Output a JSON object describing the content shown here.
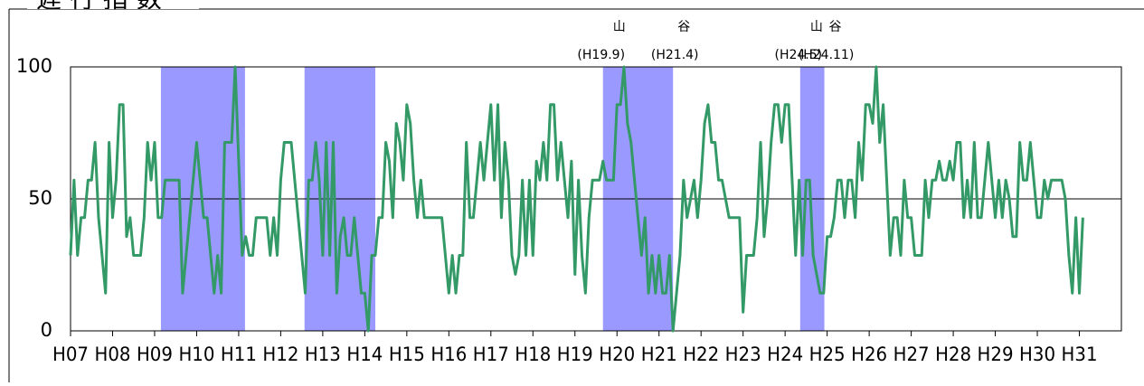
{
  "chart_data": {
    "type": "line",
    "title": "遅 行 指 数",
    "x": [
      0,
      1,
      2,
      3,
      4,
      5,
      6,
      7,
      8,
      9,
      10,
      11,
      12,
      13,
      14,
      15,
      16,
      17,
      18,
      19,
      20,
      21,
      22,
      23,
      24,
      25,
      26,
      27,
      28,
      29,
      30,
      31,
      32,
      33,
      34,
      35,
      36,
      37,
      38,
      39,
      40,
      41,
      42,
      43,
      44,
      45,
      46,
      47,
      48,
      49,
      50,
      51,
      52,
      53,
      54,
      55,
      56,
      57,
      58,
      59,
      60,
      61,
      62,
      63,
      64,
      65,
      66,
      67,
      68,
      69,
      70,
      71,
      72,
      73,
      74,
      75,
      76,
      77,
      78,
      79,
      80,
      81,
      82,
      83,
      84,
      85,
      86,
      87,
      88,
      89,
      90,
      91,
      92,
      93,
      94,
      95,
      96,
      97,
      98,
      99,
      100,
      101,
      102,
      103,
      104,
      105,
      106,
      107,
      108,
      109,
      110,
      111,
      112,
      113,
      114,
      115,
      116,
      117,
      118,
      119,
      120,
      121,
      122,
      123,
      124,
      125,
      126,
      127,
      128,
      129,
      130,
      131,
      132,
      133,
      134,
      135,
      136,
      137,
      138,
      139,
      140,
      141,
      142,
      143,
      144,
      145,
      146,
      147,
      148,
      149,
      150,
      151,
      152,
      153,
      154,
      155,
      156,
      157,
      158,
      159,
      160,
      161,
      162,
      163,
      164,
      165,
      166,
      167,
      168,
      169,
      170,
      171,
      172,
      173,
      174,
      175,
      176,
      177,
      178,
      179,
      180,
      181,
      182,
      183,
      184,
      185,
      186,
      187,
      188,
      189,
      190,
      191,
      192,
      193,
      194,
      195,
      196,
      197,
      198,
      199,
      200,
      201,
      202,
      203,
      204,
      205,
      206,
      207,
      208,
      209,
      210,
      211,
      212,
      213,
      214,
      215,
      216,
      217,
      218,
      219,
      220,
      221,
      222,
      223,
      224,
      225,
      226,
      227,
      228,
      229,
      230,
      231,
      232,
      233,
      234,
      235,
      236,
      237,
      238,
      239,
      240,
      241,
      242,
      243,
      244,
      245,
      246,
      247,
      248,
      249,
      250,
      251,
      252,
      253,
      254,
      255,
      256,
      257,
      258,
      259,
      260,
      261,
      262,
      263,
      264,
      265,
      266,
      267,
      268,
      269,
      270,
      271,
      272,
      273,
      274,
      275,
      276,
      277,
      278,
      279,
      280,
      281,
      282,
      283,
      284,
      285,
      286,
      287,
      288,
      289
    ],
    "series": [
      {
        "color": "#339966",
        "values": [
          28.6,
          57.1,
          28.6,
          42.9,
          42.9,
          57.1,
          57.1,
          71.4,
          42.9,
          28.6,
          14.3,
          71.4,
          42.9,
          57.1,
          85.7,
          85.7,
          35.7,
          42.9,
          28.6,
          28.6,
          28.6,
          42.9,
          71.4,
          57.1,
          71.4,
          42.9,
          42.9,
          57.1,
          57.1,
          57.1,
          57.1,
          57.1,
          14.3,
          28.6,
          42.9,
          57.1,
          71.4,
          57.1,
          42.9,
          42.9,
          28.6,
          14.3,
          28.6,
          14.3,
          71.4,
          71.4,
          71.4,
          100,
          64.3,
          28.6,
          35.7,
          28.6,
          28.6,
          42.9,
          42.9,
          42.9,
          42.9,
          28.6,
          42.9,
          28.6,
          57.1,
          71.4,
          71.4,
          71.4,
          57.1,
          42.9,
          28.6,
          14.3,
          57.1,
          57.1,
          71.4,
          57.1,
          28.6,
          71.4,
          28.6,
          71.4,
          14.3,
          35.7,
          42.9,
          28.6,
          28.6,
          42.9,
          28.6,
          14.3,
          14.3,
          0,
          28.6,
          28.6,
          42.9,
          42.9,
          71.4,
          64.3,
          42.9,
          78.6,
          71.4,
          57.1,
          85.7,
          78.6,
          57.1,
          42.9,
          57.1,
          42.9,
          42.9,
          42.9,
          42.9,
          42.9,
          42.9,
          28.6,
          14.3,
          28.6,
          14.3,
          28.6,
          28.6,
          71.4,
          42.9,
          42.9,
          57.1,
          71.4,
          57.1,
          71.4,
          85.7,
          57.1,
          85.7,
          42.9,
          71.4,
          57.1,
          28.6,
          21.4,
          28.6,
          57.1,
          28.6,
          57.1,
          28.6,
          64.3,
          57.1,
          71.4,
          57.1,
          85.7,
          85.7,
          57.1,
          71.4,
          57.1,
          42.9,
          64.3,
          21.4,
          57.1,
          28.6,
          14.3,
          42.9,
          57.1,
          57.1,
          57.1,
          64.3,
          57.1,
          57.1,
          57.1,
          85.7,
          85.7,
          100,
          78.6,
          71.4,
          57.1,
          42.9,
          28.6,
          42.9,
          14.3,
          28.6,
          14.3,
          28.6,
          14.3,
          14.3,
          28.6,
          0,
          14.3,
          28.6,
          57.1,
          42.9,
          50,
          57.1,
          42.9,
          57.1,
          78.6,
          85.7,
          71.4,
          71.4,
          57.1,
          57.1,
          50,
          42.9,
          42.9,
          42.9,
          42.9,
          7.1,
          28.6,
          28.6,
          28.6,
          42.9,
          71.4,
          35.7,
          50,
          71.4,
          85.7,
          85.7,
          71.4,
          85.7,
          85.7,
          57.1,
          28.6,
          57.1,
          28.6,
          57.1,
          57.1,
          28.6,
          21.4,
          14.3,
          14.3,
          35.7,
          35.7,
          42.9,
          57.1,
          57.1,
          42.9,
          57.1,
          57.1,
          42.9,
          71.4,
          57.1,
          85.7,
          85.7,
          78.6,
          100,
          71.4,
          85.7,
          57.1,
          28.6,
          42.9,
          42.9,
          28.6,
          57.1,
          42.9,
          42.9,
          28.6,
          28.6,
          28.6,
          57.1,
          42.9,
          57.1,
          57.1,
          64.3,
          57.1,
          57.1,
          64.3,
          57.1,
          71.4,
          71.4,
          42.9,
          57.1,
          42.9,
          71.4,
          42.9,
          42.9,
          57.1,
          71.4,
          57.1,
          42.9,
          57.1,
          42.9,
          57.1,
          50,
          35.7,
          35.7,
          71.4,
          57.1,
          57.1,
          71.4,
          57.1,
          42.9,
          42.9,
          57.1,
          50,
          57.1,
          57.1,
          57.1,
          57.1,
          50,
          28.6,
          14.3,
          42.9,
          14.3,
          42.9
        ]
      }
    ],
    "recession_color": "#9999ff",
    "recessions": [
      {
        "start": 25.8,
        "end": 49.8
      },
      {
        "start": 66.8,
        "end": 87
      },
      {
        "start": 152,
        "end": 172,
        "peak_label": "山",
        "peak_date": "(H19.9)",
        "trough_label": "谷",
        "trough_date": "(H21.4)"
      },
      {
        "start": 208.3,
        "end": 215.2,
        "peak_label": "山",
        "peak_date": "(H24.5)",
        "trough_label": "谷",
        "trough_date": "(H24.11)"
      }
    ],
    "xlim": [
      0,
      300
    ],
    "xticks": [
      {
        "value": 0,
        "label": "H07"
      },
      {
        "value": 12,
        "label": "H08"
      },
      {
        "value": 24,
        "label": "H09"
      },
      {
        "value": 36,
        "label": "H10"
      },
      {
        "value": 48,
        "label": "H11"
      },
      {
        "value": 60,
        "label": "H12"
      },
      {
        "value": 72,
        "label": "H13"
      },
      {
        "value": 84,
        "label": "H14"
      },
      {
        "value": 96,
        "label": "H15"
      },
      {
        "value": 108,
        "label": "H16"
      },
      {
        "value": 120,
        "label": "H17"
      },
      {
        "value": 132,
        "label": "H18"
      },
      {
        "value": 144,
        "label": "H19"
      },
      {
        "value": 156,
        "label": "H20"
      },
      {
        "value": 168,
        "label": "H21"
      },
      {
        "value": 180,
        "label": "H22"
      },
      {
        "value": 192,
        "label": "H23"
      },
      {
        "value": 204,
        "label": "H24"
      },
      {
        "value": 216,
        "label": "H25"
      },
      {
        "value": 228,
        "label": "H26"
      },
      {
        "value": 240,
        "label": "H27"
      },
      {
        "value": 252,
        "label": "H28"
      },
      {
        "value": 264,
        "label": "H29"
      },
      {
        "value": 276,
        "label": "H30"
      },
      {
        "value": 288,
        "label": "H31"
      }
    ],
    "ylim": [
      0,
      100
    ],
    "yticks": [
      0,
      50,
      100
    ],
    "grid": true
  }
}
